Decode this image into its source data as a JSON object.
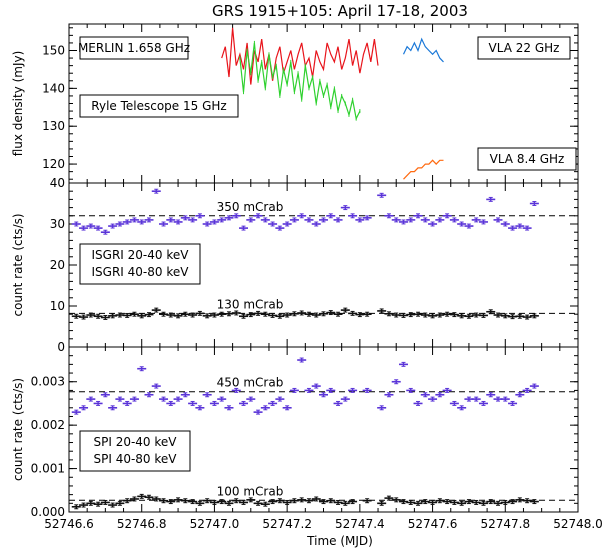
{
  "title": "GRS 1915+105: April 17-18, 2003",
  "xlabel": "Time (MJD)",
  "colors": {
    "merlin": "#e8141b",
    "ryle": "#2fd12f",
    "vla22": "#1a78d8",
    "vla84": "#ff6a10",
    "isgri_lo": "#5a34d8",
    "isgri_hi": "#111111",
    "spi_lo": "#5a34d8",
    "spi_hi": "#111111"
  },
  "chart_data": [
    {
      "type": "line",
      "panel": "radio",
      "ylabel": "flux density (mJy)",
      "xlim": [
        52746.6,
        52748.0
      ],
      "ylim": [
        115,
        157
      ],
      "yticks": [
        120,
        130,
        140,
        150
      ],
      "xticks": [
        52746.6,
        52746.8,
        52747.0,
        52747.2,
        52747.4,
        52747.6,
        52747.8,
        52748.0
      ],
      "legend": [
        {
          "label": "MERLIN 1.658 GHz",
          "color_key": "merlin",
          "placement": "top-left"
        },
        {
          "label": "Ryle Telescope 15 GHz",
          "color_key": "ryle",
          "placement": "middle-left"
        },
        {
          "label": "VLA 22 GHz",
          "color_key": "vla22",
          "placement": "top-right"
        },
        {
          "label": "VLA 8.4 GHz",
          "color_key": "vla84",
          "placement": "bottom-right"
        }
      ],
      "series": [
        {
          "name": "MERLIN 1.658 GHz",
          "color_key": "merlin",
          "x": [
            52747.02,
            52747.03,
            52747.04,
            52747.05,
            52747.06,
            52747.07,
            52747.08,
            52747.09,
            52747.1,
            52747.11,
            52747.12,
            52747.13,
            52747.14,
            52747.15,
            52747.16,
            52747.17,
            52747.18,
            52747.19,
            52747.2,
            52747.21,
            52747.22,
            52747.23,
            52747.24,
            52747.25,
            52747.26,
            52747.27,
            52747.28,
            52747.29,
            52747.3,
            52747.31,
            52747.32,
            52747.33,
            52747.34,
            52747.35,
            52747.36,
            52747.37,
            52747.38,
            52747.39,
            52747.4,
            52747.41,
            52747.42,
            52747.43,
            52747.44,
            52747.45
          ],
          "y": [
            148,
            151,
            143,
            156,
            146,
            149,
            145,
            152,
            141,
            150,
            147,
            153,
            145,
            149,
            142,
            148,
            151,
            144,
            147,
            150,
            145,
            149,
            152,
            146,
            148,
            143,
            150,
            147,
            145,
            152,
            149,
            147,
            151,
            145,
            148,
            153,
            146,
            150,
            144,
            149,
            152,
            147,
            153,
            146
          ]
        },
        {
          "name": "Ryle Telescope 15 GHz",
          "color_key": "ryle",
          "x": [
            52747.07,
            52747.08,
            52747.09,
            52747.1,
            52747.11,
            52747.12,
            52747.13,
            52747.14,
            52747.15,
            52747.16,
            52747.17,
            52747.18,
            52747.19,
            52747.2,
            52747.21,
            52747.22,
            52747.23,
            52747.24,
            52747.25,
            52747.26,
            52747.27,
            52747.28,
            52747.29,
            52747.3,
            52747.31,
            52747.32,
            52747.33,
            52747.34,
            52747.35,
            52747.36,
            52747.37,
            52747.38,
            52747.39,
            52747.4
          ],
          "y": [
            148,
            139,
            150,
            144,
            152,
            142,
            147,
            140,
            149,
            143,
            146,
            138,
            145,
            141,
            147,
            139,
            144,
            137,
            146,
            140,
            143,
            136,
            142,
            138,
            141,
            135,
            140,
            134,
            138,
            136,
            133,
            137,
            132,
            134
          ]
        },
        {
          "name": "VLA 22 GHz",
          "color_key": "vla22",
          "x": [
            52747.52,
            52747.53,
            52747.54,
            52747.55,
            52747.56,
            52747.57,
            52747.58,
            52747.59,
            52747.6,
            52747.61,
            52747.62,
            52747.63
          ],
          "y": [
            149,
            151,
            150,
            152,
            150,
            153,
            151,
            150,
            149,
            150,
            148,
            147
          ]
        },
        {
          "name": "VLA 8.4 GHz",
          "color_key": "vla84",
          "x": [
            52747.52,
            52747.53,
            52747.54,
            52747.55,
            52747.56,
            52747.57,
            52747.58,
            52747.59,
            52747.6,
            52747.61,
            52747.62,
            52747.63
          ],
          "y": [
            116,
            117,
            118,
            118,
            119,
            119,
            120,
            120,
            121,
            120,
            121,
            121
          ]
        }
      ]
    },
    {
      "type": "scatter",
      "panel": "isgri",
      "ylabel": "count rate (cts/s)",
      "xlim": [
        52746.6,
        52748.0
      ],
      "ylim": [
        0,
        40
      ],
      "yticks": [
        0,
        10,
        20,
        30,
        40
      ],
      "legend": [
        {
          "label": "ISGRI 20-40 keV",
          "color_key": "isgri_lo",
          "placement": "middle-left"
        },
        {
          "label": "ISGRI 40-80 keV",
          "color_key": "isgri_hi",
          "placement": "middle-left"
        }
      ],
      "reference_lines": [
        {
          "label": "350 mCrab",
          "y": 32
        },
        {
          "label": "130 mCrab",
          "y": 8.2
        }
      ],
      "series": [
        {
          "name": "ISGRI 20-40 keV",
          "color_key": "isgri_lo",
          "x": [
            52746.62,
            52746.64,
            52746.66,
            52746.68,
            52746.7,
            52746.72,
            52746.74,
            52746.76,
            52746.78,
            52746.8,
            52746.82,
            52746.84,
            52746.86,
            52746.88,
            52746.9,
            52746.92,
            52746.94,
            52746.96,
            52746.98,
            52747.0,
            52747.02,
            52747.04,
            52747.06,
            52747.08,
            52747.1,
            52747.12,
            52747.14,
            52747.16,
            52747.18,
            52747.2,
            52747.22,
            52747.24,
            52747.26,
            52747.28,
            52747.3,
            52747.32,
            52747.34,
            52747.36,
            52747.38,
            52747.4,
            52747.42,
            52747.46,
            52747.48,
            52747.5,
            52747.52,
            52747.54,
            52747.56,
            52747.58,
            52747.6,
            52747.62,
            52747.64,
            52747.66,
            52747.68,
            52747.7,
            52747.72,
            52747.74,
            52747.76,
            52747.78,
            52747.8,
            52747.82,
            52747.84,
            52747.86,
            52747.88
          ],
          "y": [
            30,
            29,
            29.5,
            29,
            28,
            29.5,
            30,
            30.5,
            31,
            30.5,
            31,
            38,
            30,
            31,
            30.5,
            31.5,
            31,
            32,
            30,
            30.5,
            31,
            31.5,
            32,
            29,
            31,
            32,
            31,
            30,
            29,
            30,
            31,
            32,
            31,
            30,
            31,
            32,
            31,
            34,
            32,
            31,
            31.5,
            37,
            32,
            31,
            30.5,
            31,
            32,
            31,
            30,
            31,
            32,
            31,
            30,
            29.5,
            31,
            30.5,
            36,
            31,
            30,
            29,
            29.5,
            29,
            35
          ]
        },
        {
          "name": "ISGRI 40-80 keV",
          "color_key": "isgri_hi",
          "x": [
            52746.62,
            52746.64,
            52746.66,
            52746.68,
            52746.7,
            52746.72,
            52746.74,
            52746.76,
            52746.78,
            52746.8,
            52746.82,
            52746.84,
            52746.86,
            52746.88,
            52746.9,
            52746.92,
            52746.94,
            52746.96,
            52746.98,
            52747.0,
            52747.02,
            52747.04,
            52747.06,
            52747.08,
            52747.1,
            52747.12,
            52747.14,
            52747.16,
            52747.18,
            52747.2,
            52747.22,
            52747.24,
            52747.26,
            52747.28,
            52747.3,
            52747.32,
            52747.34,
            52747.36,
            52747.38,
            52747.4,
            52747.42,
            52747.46,
            52747.48,
            52747.5,
            52747.52,
            52747.54,
            52747.56,
            52747.58,
            52747.6,
            52747.62,
            52747.64,
            52747.66,
            52747.68,
            52747.7,
            52747.72,
            52747.74,
            52747.76,
            52747.78,
            52747.8,
            52747.82,
            52747.84,
            52747.86,
            52747.88
          ],
          "y": [
            7.5,
            7.3,
            7.8,
            7.5,
            7.2,
            7.6,
            7.8,
            7.7,
            8,
            7.6,
            7.9,
            9,
            8,
            7.8,
            7.6,
            8,
            7.8,
            8.2,
            7.6,
            7.8,
            8,
            8.1,
            8.3,
            7.5,
            7.9,
            8.2,
            8,
            7.7,
            7.5,
            7.8,
            8.1,
            8.3,
            8,
            7.8,
            8.1,
            8.4,
            8,
            9,
            8.2,
            7.9,
            8,
            8.8,
            8.1,
            7.8,
            7.7,
            7.9,
            8,
            7.8,
            7.6,
            7.8,
            8,
            7.9,
            7.6,
            7.5,
            7.8,
            7.7,
            8.6,
            7.8,
            7.6,
            7.4,
            7.5,
            7.3,
            7.6
          ]
        }
      ]
    },
    {
      "type": "scatter",
      "panel": "spi",
      "ylabel": "count rate (cts/s)",
      "xlim": [
        52746.6,
        52748.0
      ],
      "ylim": [
        0,
        0.0038
      ],
      "yticks": [
        0.0,
        0.001,
        0.002,
        0.003
      ],
      "ytick_labels": [
        "0.000",
        "0.001",
        "0.002",
        "0.003"
      ],
      "xtick_labels": [
        "52746.6",
        "52746.8",
        "52747.0",
        "52747.2",
        "52747.4",
        "52747.6",
        "52747.8",
        "52748.0"
      ],
      "legend": [
        {
          "label": "SPI 20-40 keV",
          "color_key": "spi_lo",
          "placement": "bottom-left"
        },
        {
          "label": "SPI 40-80 keV",
          "color_key": "spi_hi",
          "placement": "bottom-left"
        }
      ],
      "reference_lines": [
        {
          "label": "450 mCrab",
          "y": 0.00277
        },
        {
          "label": "100 mCrab",
          "y": 0.00027
        }
      ],
      "series": [
        {
          "name": "SPI 20-40 keV",
          "color_key": "spi_lo",
          "x": [
            52746.62,
            52746.64,
            52746.66,
            52746.68,
            52746.7,
            52746.72,
            52746.74,
            52746.76,
            52746.78,
            52746.8,
            52746.82,
            52746.84,
            52746.86,
            52746.88,
            52746.9,
            52746.92,
            52746.94,
            52746.96,
            52746.98,
            52747.0,
            52747.02,
            52747.04,
            52747.06,
            52747.08,
            52747.1,
            52747.12,
            52747.14,
            52747.16,
            52747.18,
            52747.2,
            52747.22,
            52747.24,
            52747.26,
            52747.28,
            52747.3,
            52747.32,
            52747.34,
            52747.36,
            52747.38,
            52747.42,
            52747.46,
            52747.48,
            52747.5,
            52747.52,
            52747.54,
            52747.56,
            52747.58,
            52747.6,
            52747.62,
            52747.64,
            52747.66,
            52747.68,
            52747.7,
            52747.72,
            52747.74,
            52747.76,
            52747.78,
            52747.8,
            52747.82,
            52747.84,
            52747.86,
            52747.88
          ],
          "y": [
            0.0023,
            0.0024,
            0.0026,
            0.0025,
            0.0027,
            0.0024,
            0.0026,
            0.0025,
            0.0026,
            0.0033,
            0.0027,
            0.0029,
            0.0026,
            0.0025,
            0.0026,
            0.0027,
            0.0025,
            0.0024,
            0.0027,
            0.0025,
            0.0026,
            0.0024,
            0.0028,
            0.0025,
            0.0026,
            0.0023,
            0.0024,
            0.0025,
            0.0026,
            0.0024,
            0.0028,
            0.0035,
            0.0028,
            0.0029,
            0.0027,
            0.0028,
            0.0025,
            0.0026,
            0.0028,
            0.0028,
            0.0024,
            0.0027,
            0.003,
            0.0034,
            0.0028,
            0.0025,
            0.0027,
            0.0026,
            0.0027,
            0.0028,
            0.0025,
            0.0024,
            0.0026,
            0.0026,
            0.0025,
            0.0027,
            0.0026,
            0.0026,
            0.0025,
            0.0027,
            0.0028,
            0.0029
          ]
        },
        {
          "name": "SPI 40-80 keV",
          "color_key": "spi_hi",
          "x": [
            52746.62,
            52746.64,
            52746.66,
            52746.68,
            52746.7,
            52746.72,
            52746.74,
            52746.76,
            52746.78,
            52746.8,
            52746.82,
            52746.84,
            52746.86,
            52746.88,
            52746.9,
            52746.92,
            52746.94,
            52746.96,
            52746.98,
            52747.0,
            52747.02,
            52747.04,
            52747.06,
            52747.08,
            52747.1,
            52747.12,
            52747.14,
            52747.16,
            52747.18,
            52747.2,
            52747.22,
            52747.24,
            52747.26,
            52747.28,
            52747.3,
            52747.32,
            52747.34,
            52747.36,
            52747.38,
            52747.42,
            52747.46,
            52747.48,
            52747.5,
            52747.52,
            52747.54,
            52747.56,
            52747.58,
            52747.6,
            52747.62,
            52747.64,
            52747.66,
            52747.68,
            52747.7,
            52747.72,
            52747.74,
            52747.76,
            52747.78,
            52747.8,
            52747.82,
            52747.84,
            52747.86,
            52747.88
          ],
          "y": [
            0.00012,
            0.00016,
            0.0002,
            0.00018,
            0.00022,
            0.00016,
            0.0002,
            0.00026,
            0.0003,
            0.00036,
            0.00034,
            0.0003,
            0.00026,
            0.00024,
            0.00028,
            0.00026,
            0.00024,
            0.0002,
            0.00026,
            0.00022,
            0.00024,
            0.0002,
            0.00026,
            0.00022,
            0.00028,
            0.0002,
            0.00018,
            0.00024,
            0.00026,
            0.00022,
            0.00026,
            0.00028,
            0.00026,
            0.0003,
            0.00024,
            0.00026,
            0.00022,
            0.0002,
            0.00024,
            0.00026,
            0.0002,
            0.00032,
            0.00028,
            0.00024,
            0.00022,
            0.0002,
            0.00024,
            0.00022,
            0.00026,
            0.00024,
            0.00022,
            0.0002,
            0.00024,
            0.00022,
            0.0002,
            0.00024,
            0.0002,
            0.00022,
            0.00024,
            0.00028,
            0.00026,
            0.00024
          ]
        }
      ]
    }
  ]
}
